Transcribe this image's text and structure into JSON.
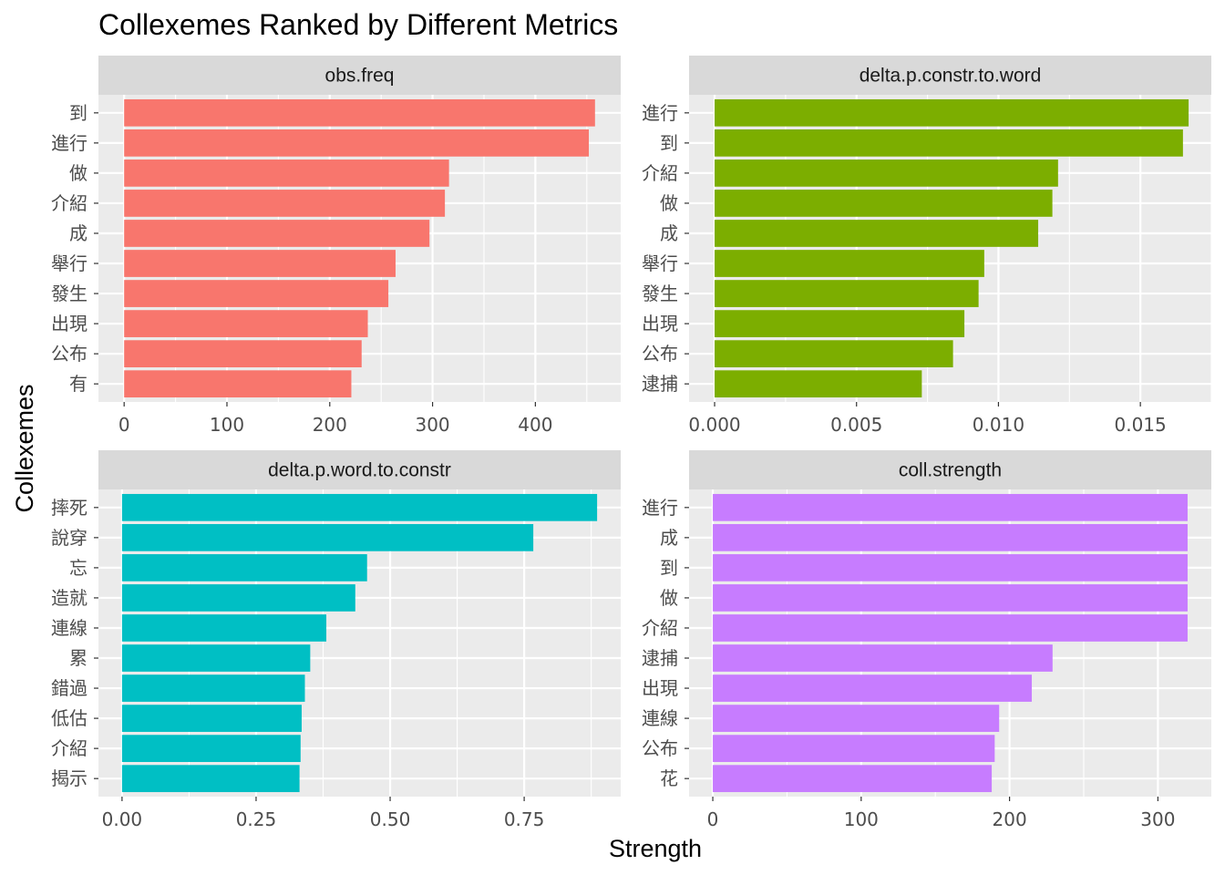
{
  "chart_data": {
    "type": "bar",
    "orientation": "horizontal",
    "title": "Collexemes Ranked by Different Metrics",
    "xlabel": "Strength",
    "ylabel": "Collexemes",
    "legend": "none",
    "grid": true,
    "panels": [
      {
        "strip_label": "obs.freq",
        "color": "#F8766D",
        "xlim": [
          -25,
          483
        ],
        "ticks": [
          0,
          100,
          200,
          300,
          400
        ],
        "tick_labels": [
          "0",
          "100",
          "200",
          "300",
          "400"
        ],
        "categories": [
          "到",
          "進行",
          "做",
          "介紹",
          "成",
          "舉行",
          "發生",
          "出現",
          "公布",
          "有"
        ],
        "values": [
          458,
          452,
          316,
          312,
          297,
          264,
          257,
          237,
          231,
          221
        ]
      },
      {
        "strip_label": "delta.p.constr.to.word",
        "color": "#7CAE00",
        "xlim": [
          -0.0009,
          0.0175
        ],
        "ticks": [
          0,
          0.005,
          0.01,
          0.015
        ],
        "tick_labels": [
          "0.000",
          "0.005",
          "0.010",
          "0.015"
        ],
        "categories": [
          "進行",
          "到",
          "介紹",
          "做",
          "成",
          "舉行",
          "發生",
          "出現",
          "公布",
          "逮捕"
        ],
        "values": [
          0.0167,
          0.0165,
          0.0121,
          0.0119,
          0.0114,
          0.0095,
          0.0093,
          0.0088,
          0.0084,
          0.0073
        ]
      },
      {
        "strip_label": "delta.p.word.to.constr",
        "color": "#00BFC4",
        "xlim": [
          -0.044,
          0.93
        ],
        "ticks": [
          0,
          0.25,
          0.5,
          0.75
        ],
        "tick_labels": [
          "0.00",
          "0.25",
          "0.50",
          "0.75"
        ],
        "categories": [
          "摔死",
          "說穿",
          "忘",
          "造就",
          "連線",
          "累",
          "錯過",
          "低估",
          "介紹",
          "揭示"
        ],
        "values": [
          0.886,
          0.767,
          0.457,
          0.435,
          0.381,
          0.351,
          0.341,
          0.335,
          0.333,
          0.331
        ]
      },
      {
        "strip_label": "coll.strength",
        "color": "#C77CFF",
        "xlim": [
          -16,
          336
        ],
        "ticks": [
          0,
          100,
          200,
          300
        ],
        "tick_labels": [
          "0",
          "100",
          "200",
          "300"
        ],
        "categories": [
          "進行",
          "成",
          "到",
          "做",
          "介紹",
          "逮捕",
          "出現",
          "連線",
          "公布",
          "花"
        ],
        "values": [
          320,
          320,
          320,
          320,
          320,
          229,
          215,
          193,
          190,
          188
        ]
      }
    ]
  }
}
